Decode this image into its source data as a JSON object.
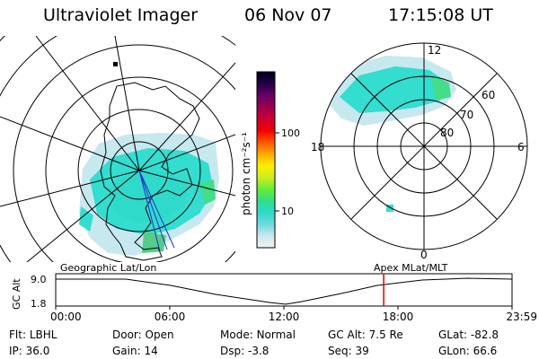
{
  "header": {
    "title": "Ultraviolet Imager",
    "date": "06 Nov 07",
    "time": "17:15:08 UT"
  },
  "colorbar": {
    "unit_label": "photon cm⁻²s⁻¹",
    "tick_100": "100",
    "tick_10": "10",
    "stops": [
      "#f2f2f2",
      "#cfe6ee",
      "#6fd9df",
      "#2fd9c9",
      "#33dd88",
      "#66ee33",
      "#ccee22",
      "#ffee00",
      "#ffaa00",
      "#ff5500",
      "#ee0000",
      "#cc0033",
      "#99004d",
      "#660066",
      "#220044",
      "#000020"
    ]
  },
  "geo_panel": {
    "label": "Geographic Lat/Lon",
    "colors": {
      "aurora_cyan": "#33ddd0",
      "aurora_green": "#44dd88",
      "track_blue": "#1c2fcc"
    }
  },
  "apex_panel": {
    "label": "Apex MLat/MLT",
    "mlt_labels": {
      "top": "12",
      "left": "18",
      "right": "6",
      "bottom": "0"
    },
    "lat_labels": [
      "60",
      "70",
      "80"
    ]
  },
  "altitude_plot": {
    "ylabel": "GC Alt",
    "y_top": "9.0",
    "y_bottom": "1.8",
    "x_ticks": [
      "00:00",
      "06:00",
      "12:00",
      "18:00",
      "23:59"
    ],
    "marker_color": "#dd0000",
    "marker_time_hours": 17.25
  },
  "info": {
    "flt_label": "Flt:",
    "flt_value": "LBHL",
    "ip_label": "IP:",
    "ip_value": "36.0",
    "door_label": "Door:",
    "door_value": "Open",
    "gain_label": "Gain:",
    "gain_value": "14",
    "mode_label": "Mode:",
    "mode_value": "Normal",
    "dsp_label": "Dsp:",
    "dsp_value": "-3.8",
    "gcalt_label": "GC Alt:",
    "gcalt_value": "7.5 Re",
    "seq_label": "Seq:",
    "seq_value": "39",
    "glat_label": "GLat:",
    "glat_value": "-82.8",
    "glon_label": "GLon:",
    "glon_value": "66.6"
  }
}
